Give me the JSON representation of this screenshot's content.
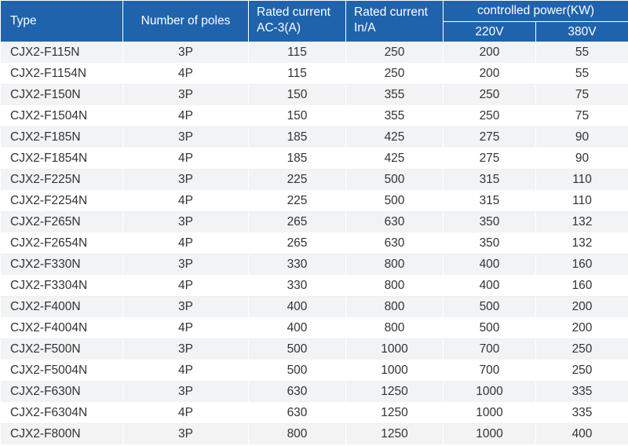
{
  "header": {
    "type": "Type",
    "poles": "Number of poles",
    "rated_ac3_line1": "Rated current",
    "rated_ac3_line2": "AC-3(A)",
    "rated_in_line1": "Rated current",
    "rated_in_line2": "In/A",
    "power_group": "controlled power(KW)",
    "power_220": "220V",
    "power_380": "380V"
  },
  "rows": [
    [
      "CJX2-F115N",
      "3P",
      "115",
      "250",
      "200",
      "55"
    ],
    [
      "CJX2-F1154N",
      "4P",
      "115",
      "250",
      "200",
      "55"
    ],
    [
      "CJX2-F150N",
      "3P",
      "150",
      "355",
      "250",
      "75"
    ],
    [
      "CJX2-F1504N",
      "4P",
      "150",
      "355",
      "250",
      "75"
    ],
    [
      "CJX2-F185N",
      "3P",
      "185",
      "425",
      "275",
      "90"
    ],
    [
      "CJX2-F1854N",
      "4P",
      "185",
      "425",
      "275",
      "90"
    ],
    [
      "CJX2-F225N",
      "3P",
      "225",
      "500",
      "315",
      "110"
    ],
    [
      "CJX2-F2254N",
      "4P",
      "225",
      "500",
      "315",
      "110"
    ],
    [
      "CJX2-F265N",
      "3P",
      "265",
      "630",
      "350",
      "132"
    ],
    [
      "CJX2-F2654N",
      "4P",
      "265",
      "630",
      "350",
      "132"
    ],
    [
      "CJX2-F330N",
      "3P",
      "330",
      "800",
      "400",
      "160"
    ],
    [
      "CJX2-F3304N",
      "4P",
      "330",
      "800",
      "400",
      "160"
    ],
    [
      "CJX2-F400N",
      "3P",
      "400",
      "800",
      "500",
      "200"
    ],
    [
      "CJX2-F4004N",
      "4P",
      "400",
      "800",
      "500",
      "200"
    ],
    [
      "CJX2-F500N",
      "3P",
      "500",
      "1000",
      "700",
      "250"
    ],
    [
      "CJX2-F5004N",
      "4P",
      "500",
      "1000",
      "700",
      "250"
    ],
    [
      "CJX2-F630N",
      "3P",
      "630",
      "1250",
      "1000",
      "335"
    ],
    [
      "CJX2-F6304N",
      "4P",
      "630",
      "1250",
      "1000",
      "335"
    ],
    [
      "CJX2-F800N",
      "3P",
      "800",
      "1250",
      "1000",
      "400"
    ]
  ]
}
